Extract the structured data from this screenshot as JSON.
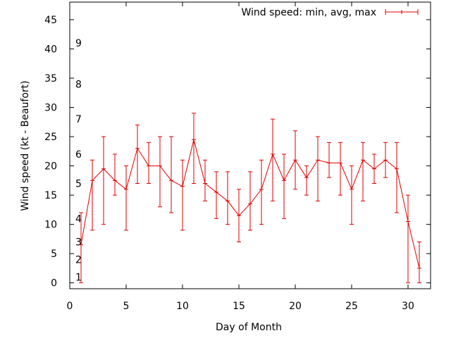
{
  "chart_data": {
    "type": "line",
    "title": "",
    "xlabel": "Day of Month",
    "ylabel": "Wind speed (kt - Beaufort)",
    "xlim": [
      0,
      32
    ],
    "ylim": [
      -1,
      48
    ],
    "xticks": [
      0,
      5,
      10,
      15,
      20,
      25,
      30
    ],
    "yticks": [
      0,
      5,
      10,
      15,
      20,
      25,
      30,
      35,
      40,
      45
    ],
    "grid": false,
    "legend_position": "top-right",
    "series": [
      {
        "name": "Wind speed: min, avg, max",
        "color": "#e00000",
        "x": [
          1,
          2,
          3,
          4,
          5,
          6,
          7,
          8,
          9,
          10,
          11,
          12,
          13,
          14,
          15,
          16,
          17,
          18,
          19,
          20,
          21,
          22,
          23,
          24,
          25,
          26,
          27,
          28,
          29,
          30,
          31
        ],
        "y": [
          6.5,
          17.5,
          19.5,
          17.5,
          16,
          23,
          20,
          20,
          17.5,
          16.5,
          24.5,
          17,
          15.5,
          14,
          11.5,
          13.5,
          16,
          22,
          17.5,
          21,
          18,
          21,
          20.5,
          20.5,
          16,
          21,
          19.5,
          21,
          19.5,
          10.5,
          2.5
        ],
        "ymin": [
          0,
          9,
          10,
          15,
          9,
          17,
          17,
          13,
          12,
          9,
          17,
          14,
          11,
          10,
          7,
          9,
          10,
          14,
          11,
          16,
          15,
          14,
          18,
          15,
          10,
          14,
          17,
          18,
          12,
          0,
          0
        ],
        "ymax": [
          12,
          21,
          25,
          22,
          20,
          27,
          24,
          25,
          25,
          21,
          29,
          21,
          19,
          19,
          16,
          19,
          21,
          28,
          22,
          26,
          20,
          25,
          24,
          24,
          20,
          24,
          22,
          24,
          24,
          15,
          7
        ]
      }
    ],
    "beaufort_annotations": [
      {
        "label": "1",
        "y": 1
      },
      {
        "label": "2",
        "y": 4
      },
      {
        "label": "3",
        "y": 7
      },
      {
        "label": "4",
        "y": 11
      },
      {
        "label": "5",
        "y": 17
      },
      {
        "label": "6",
        "y": 22
      },
      {
        "label": "7",
        "y": 28
      },
      {
        "label": "8",
        "y": 34
      },
      {
        "label": "9",
        "y": 41
      }
    ]
  }
}
